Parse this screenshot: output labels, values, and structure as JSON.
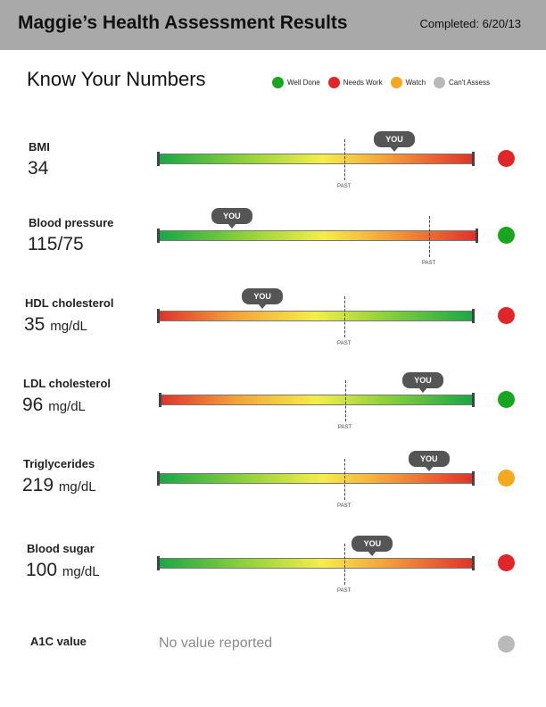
{
  "header": {
    "title": "Maggie’s Health Assessment Results",
    "completed": "Completed: 6/20/13"
  },
  "section_title": "Know Your Numbers",
  "legend": [
    {
      "label": "Well Done",
      "color": "#1aa51f"
    },
    {
      "label": "Needs Work",
      "color": "#e1262a"
    },
    {
      "label": "Watch",
      "color": "#f3a81e"
    },
    {
      "label": "Can't Assess",
      "color": "#b9b9b9"
    }
  ],
  "marker_labels": {
    "you": "YOU",
    "past": "PAST"
  },
  "metrics": [
    {
      "label": "BMI",
      "value": "34",
      "unit": "",
      "status": "Needs Work",
      "status_color": "#e1262a",
      "scale": "green-to-red",
      "you_level": 0.75,
      "past_level": 0.59
    },
    {
      "label": "Blood pressure",
      "value": "115/75",
      "unit": "",
      "status": "Well Done",
      "status_color": "#1aa51f",
      "scale": "green-to-red",
      "you_level": 0.23,
      "past_level": 0.85
    },
    {
      "label": "HDL cholesterol",
      "value": "35",
      "unit": "mg/dL",
      "status": "Needs Work",
      "status_color": "#e1262a",
      "scale": "red-to-green",
      "you_level": 0.33,
      "past_level": 0.59
    },
    {
      "label": "LDL cholesterol",
      "value": "96",
      "unit": "mg/dL",
      "status": "Well Done",
      "status_color": "#1aa51f",
      "scale": "red-to-green",
      "you_level": 0.84,
      "past_level": 0.59
    },
    {
      "label": "Triglycerides",
      "value": "219",
      "unit": "mg/dL",
      "status": "Watch",
      "status_color": "#f3a81e",
      "scale": "green-to-red",
      "you_level": 0.86,
      "past_level": 0.59
    },
    {
      "label": "Blood sugar",
      "value": "100",
      "unit": "mg/dL",
      "status": "Needs Work",
      "status_color": "#e1262a",
      "scale": "green-to-red",
      "you_level": 0.68,
      "past_level": 0.59
    }
  ],
  "a1c": {
    "label": "A1C value",
    "message": "No value reported",
    "status": "Can't Assess",
    "status_color": "#b9b9b9"
  }
}
